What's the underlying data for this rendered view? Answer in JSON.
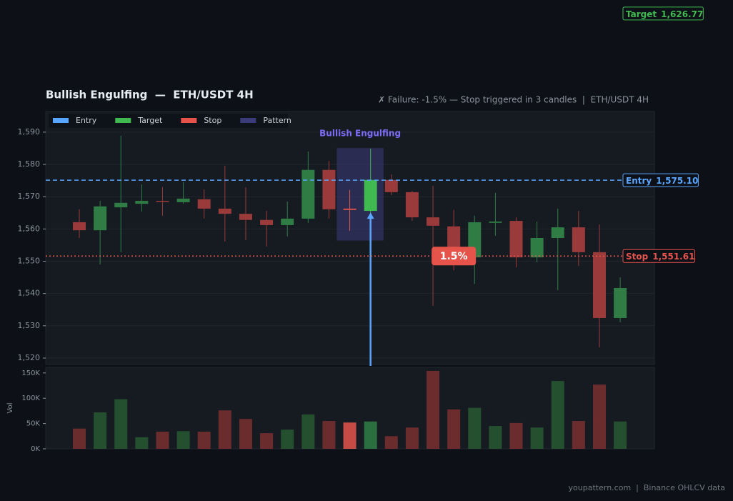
{
  "chart_data": {
    "type": "candlestick",
    "title": "Bullish Engulfing  —  ETH/USDT 4H",
    "subtitle": "✗ Failure: -1.5% — Stop triggered in 3 candles  |  ETH/USDT 4H",
    "footer": "youpattern.com  |  Binance OHLCV data",
    "volume_axis_label": "Vol",
    "open": [
      1562.1,
      1559.6,
      1566.7,
      1567.8,
      1568.7,
      1568.3,
      1569.2,
      1566.3,
      1564.7,
      1562.8,
      1561.2,
      1563.2,
      1578.3,
      1566.3,
      1565.6,
      1575.2,
      1571.4,
      1563.6,
      1560.8,
      1551.2,
      1561.9,
      1562.5,
      1551.2,
      1557.2,
      1560.5,
      1552.8,
      1532.4
    ],
    "high": [
      1566.1,
      1568.7,
      1588.9,
      1573.8,
      1573.0,
      1574.5,
      1572.3,
      1579.6,
      1572.9,
      1565.6,
      1568.5,
      1584.0,
      1581.1,
      1572.1,
      1584.9,
      1576.9,
      1571.8,
      1573.4,
      1565.9,
      1564.1,
      1571.2,
      1563.6,
      1562.3,
      1566.3,
      1565.6,
      1561.4,
      1545.0
    ],
    "low": [
      1557.2,
      1549.0,
      1552.8,
      1565.4,
      1564.1,
      1567.8,
      1563.2,
      1556.1,
      1556.5,
      1554.6,
      1557.7,
      1561.9,
      1563.2,
      1559.4,
      1557.9,
      1570.5,
      1562.5,
      1536.2,
      1547.2,
      1543.0,
      1557.9,
      1548.1,
      1549.7,
      1541.0,
      1548.6,
      1523.3,
      1531.1
    ],
    "close": [
      1559.6,
      1567.0,
      1568.1,
      1568.7,
      1568.5,
      1569.4,
      1566.3,
      1564.7,
      1562.8,
      1561.2,
      1563.2,
      1578.3,
      1566.1,
      1565.9,
      1575.2,
      1571.4,
      1563.6,
      1561.0,
      1553.4,
      1562.1,
      1562.3,
      1551.2,
      1557.2,
      1560.5,
      1552.8,
      1532.4,
      1541.7
    ],
    "volume": [
      40000,
      72000,
      98000,
      23000,
      34000,
      35000,
      34000,
      76000,
      59000,
      31000,
      38000,
      68000,
      55000,
      52000,
      54000,
      25000,
      42000,
      154000,
      78000,
      81000,
      45000,
      51000,
      42000,
      134000,
      55000,
      127000,
      54000
    ],
    "up_color": "#2f7d45",
    "down_color": "#9a3a3a",
    "pattern_up_color": "#3fb950",
    "pattern_down_color": "#e5534b",
    "volume_up_color": "#24502f",
    "volume_down_color": "#6b2c2e",
    "pattern": {
      "label": "Bullish Engulfing",
      "candles": [
        13,
        14
      ],
      "color": "#3b3b7a"
    },
    "levels": [
      {
        "name": "Entry",
        "value": 1575.1,
        "value_label": "1,575.10",
        "color": "#58a6ff",
        "style": "dashed"
      },
      {
        "name": "Target",
        "value": 1626.77,
        "value_label": "1,626.77",
        "color": "#3fb950",
        "style": "none"
      },
      {
        "name": "Stop",
        "value": 1551.61,
        "value_label": "1,551.61",
        "color": "#e5534b",
        "style": "dotted"
      }
    ],
    "badge": "1.5%",
    "legend": [
      {
        "name": "Entry",
        "color": "#58a6ff"
      },
      {
        "name": "Target",
        "color": "#3fb950"
      },
      {
        "name": "Stop",
        "color": "#e5534b"
      },
      {
        "name": "Pattern",
        "color": "#3b3b7a"
      }
    ],
    "ylim": [
      1518,
      1596.4
    ],
    "yticks": [
      {
        "value": 1520,
        "label": "1,520"
      },
      {
        "value": 1530,
        "label": "1,530"
      },
      {
        "value": 1540,
        "label": "1,540"
      },
      {
        "value": 1550,
        "label": "1,550"
      },
      {
        "value": 1560,
        "label": "1,560"
      },
      {
        "value": 1570,
        "label": "1,570"
      },
      {
        "value": 1580,
        "label": "1,580"
      },
      {
        "value": 1590,
        "label": "1,590"
      }
    ],
    "volume_ylim": [
      0,
      161000
    ],
    "volume_yticks": [
      {
        "value": 0,
        "label": "0K"
      },
      {
        "value": 50000,
        "label": "50K"
      },
      {
        "value": 100000,
        "label": "100K"
      },
      {
        "value": 150000,
        "label": "150K"
      }
    ],
    "grid": true
  }
}
